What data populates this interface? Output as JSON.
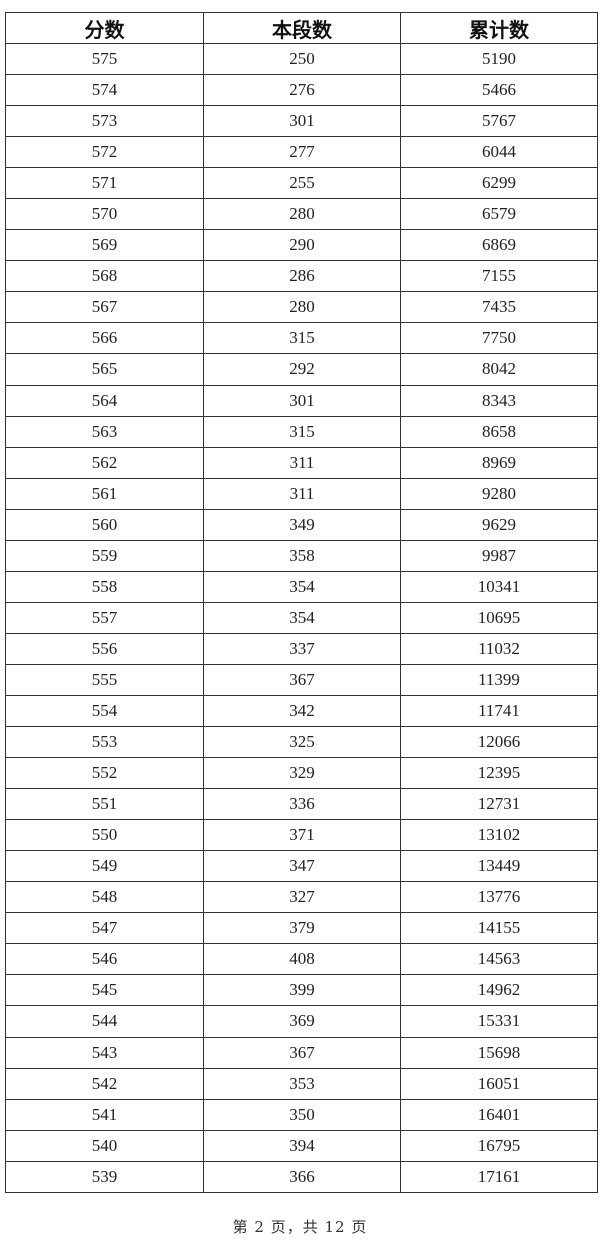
{
  "table": {
    "headers": [
      "分数",
      "本段数",
      "累计数"
    ],
    "rows": [
      [
        "575",
        "250",
        "5190"
      ],
      [
        "574",
        "276",
        "5466"
      ],
      [
        "573",
        "301",
        "5767"
      ],
      [
        "572",
        "277",
        "6044"
      ],
      [
        "571",
        "255",
        "6299"
      ],
      [
        "570",
        "280",
        "6579"
      ],
      [
        "569",
        "290",
        "6869"
      ],
      [
        "568",
        "286",
        "7155"
      ],
      [
        "567",
        "280",
        "7435"
      ],
      [
        "566",
        "315",
        "7750"
      ],
      [
        "565",
        "292",
        "8042"
      ],
      [
        "564",
        "301",
        "8343"
      ],
      [
        "563",
        "315",
        "8658"
      ],
      [
        "562",
        "311",
        "8969"
      ],
      [
        "561",
        "311",
        "9280"
      ],
      [
        "560",
        "349",
        "9629"
      ],
      [
        "559",
        "358",
        "9987"
      ],
      [
        "558",
        "354",
        "10341"
      ],
      [
        "557",
        "354",
        "10695"
      ],
      [
        "556",
        "337",
        "11032"
      ],
      [
        "555",
        "367",
        "11399"
      ],
      [
        "554",
        "342",
        "11741"
      ],
      [
        "553",
        "325",
        "12066"
      ],
      [
        "552",
        "329",
        "12395"
      ],
      [
        "551",
        "336",
        "12731"
      ],
      [
        "550",
        "371",
        "13102"
      ],
      [
        "549",
        "347",
        "13449"
      ],
      [
        "548",
        "327",
        "13776"
      ],
      [
        "547",
        "379",
        "14155"
      ],
      [
        "546",
        "408",
        "14563"
      ],
      [
        "545",
        "399",
        "14962"
      ],
      [
        "544",
        "369",
        "15331"
      ],
      [
        "543",
        "367",
        "15698"
      ],
      [
        "542",
        "353",
        "16051"
      ],
      [
        "541",
        "350",
        "16401"
      ],
      [
        "540",
        "394",
        "16795"
      ],
      [
        "539",
        "366",
        "17161"
      ]
    ]
  },
  "footer": {
    "page_label": "第 2 页，共 12 页"
  }
}
